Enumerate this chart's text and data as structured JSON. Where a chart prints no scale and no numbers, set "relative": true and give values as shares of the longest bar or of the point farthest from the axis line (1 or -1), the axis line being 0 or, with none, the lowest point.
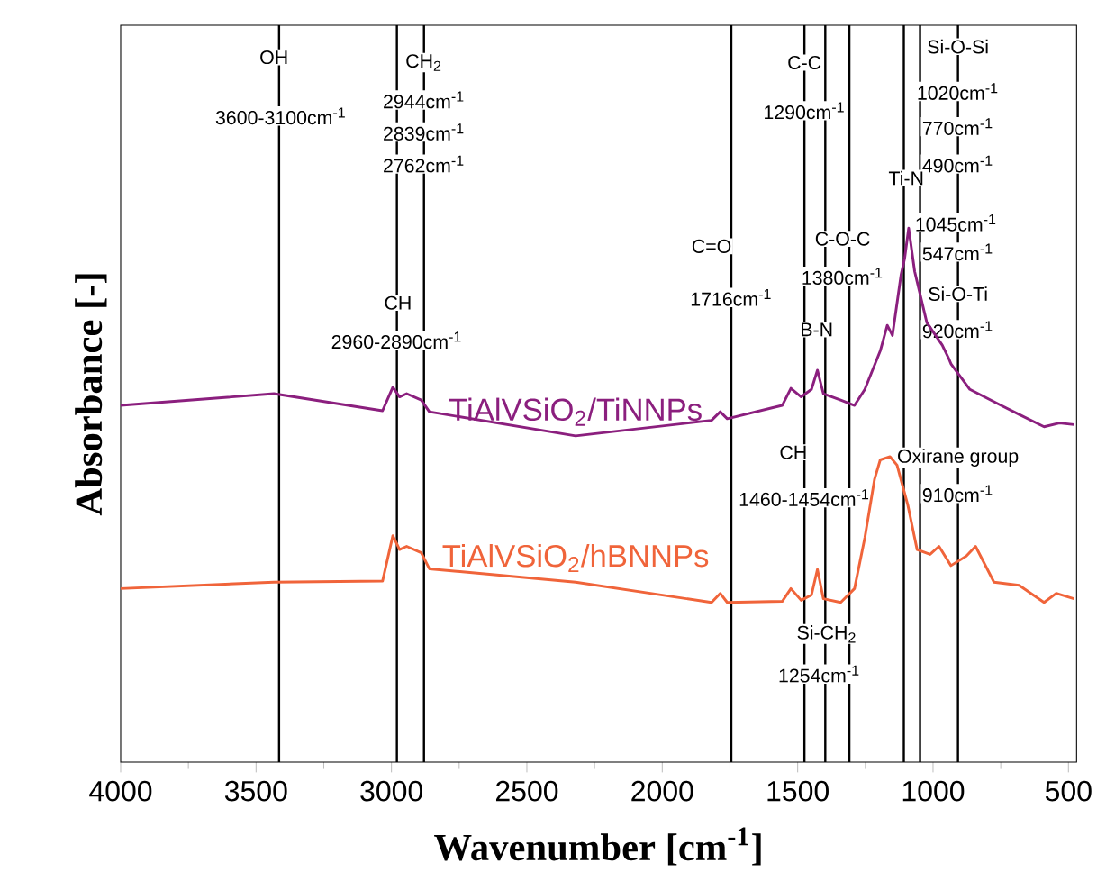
{
  "chart_data": {
    "type": "line",
    "relative": true,
    "xlabel": "Wavenumber [cm$^{-1}$]",
    "ylabel": "Absorbance [-]",
    "xlim": [
      4000,
      470
    ],
    "xticks": [
      4000,
      3500,
      3000,
      2500,
      2000,
      1500,
      1000,
      500
    ],
    "legend": false,
    "grid": false,
    "series": [
      {
        "name": "TiAlVSiO$_{2}$/TiNNPs",
        "color": "#8b1f7e",
        "x": [
          4000,
          3434,
          3033,
          2995,
          2970,
          2944,
          2890,
          2860,
          2320,
          1818,
          1786,
          1760,
          1557,
          1525,
          1487,
          1449,
          1427,
          1405,
          1341,
          1290,
          1252,
          1195,
          1169,
          1150,
          1118,
          1105,
          1090,
          1068,
          1023,
          966,
          943,
          934,
          864,
          749,
          682,
          590,
          533,
          480
        ],
        "values": [
          0.668,
          0.69,
          0.658,
          0.702,
          0.684,
          0.69,
          0.678,
          0.656,
          0.611,
          0.64,
          0.656,
          0.643,
          0.668,
          0.7,
          0.684,
          0.698,
          0.734,
          0.69,
          0.678,
          0.668,
          0.698,
          0.77,
          0.818,
          0.799,
          0.913,
          0.943,
          1.0,
          0.919,
          0.823,
          0.781,
          0.757,
          0.746,
          0.698,
          0.668,
          0.651,
          0.628,
          0.635,
          0.632
        ]
      },
      {
        "name": "TiAlVSiO$_{2}$/hBNNPs",
        "color": "#f0643a",
        "x": [
          4000,
          3434,
          3033,
          2995,
          2970,
          2944,
          2890,
          2860,
          2320,
          1818,
          1786,
          1760,
          1557,
          1525,
          1487,
          1449,
          1427,
          1405,
          1341,
          1290,
          1252,
          1216,
          1195,
          1159,
          1133,
          1093,
          1059,
          1011,
          978,
          934,
          877,
          843,
          775,
          682,
          590,
          545,
          480
        ],
        "values": [
          0.325,
          0.337,
          0.339,
          0.424,
          0.398,
          0.404,
          0.392,
          0.362,
          0.337,
          0.299,
          0.316,
          0.299,
          0.301,
          0.325,
          0.303,
          0.313,
          0.361,
          0.306,
          0.299,
          0.325,
          0.42,
          0.53,
          0.566,
          0.572,
          0.556,
          0.481,
          0.398,
          0.389,
          0.404,
          0.368,
          0.386,
          0.404,
          0.337,
          0.331,
          0.299,
          0.316,
          0.306
        ]
      }
    ],
    "ref_lines": [
      {
        "axis": "x",
        "value": 3415,
        "color": "#000000"
      },
      {
        "axis": "x",
        "value": 2980,
        "color": "#000000"
      },
      {
        "axis": "x",
        "value": 2880,
        "color": "#000000"
      },
      {
        "axis": "x",
        "value": 1745,
        "color": "#000000"
      },
      {
        "axis": "x",
        "value": 1475,
        "color": "#000000"
      },
      {
        "axis": "x",
        "value": 1398,
        "color": "#000000"
      },
      {
        "axis": "x",
        "value": 1309,
        "color": "#000000"
      },
      {
        "axis": "x",
        "value": 1108,
        "color": "#000000"
      },
      {
        "axis": "x",
        "value": 1048,
        "color": "#000000"
      },
      {
        "axis": "x",
        "value": 908,
        "color": "#000000"
      }
    ],
    "annotations": [
      {
        "text": "OH",
        "x": 3434,
        "y": 1.32
      },
      {
        "text": "3600-3100cm$^{-1}$",
        "x": 3408,
        "y": 1.21
      },
      {
        "text": "CH$_{2}$",
        "x": 2880,
        "y": 1.31
      },
      {
        "text": "2944cm$^{-1}$",
        "x": 2880,
        "y": 1.24
      },
      {
        "text": "2839cm$^{-1}$",
        "x": 2880,
        "y": 1.18
      },
      {
        "text": "2762cm$^{-1}$",
        "x": 2880,
        "y": 1.12
      },
      {
        "text": "CH",
        "x": 2976,
        "y": 0.86
      },
      {
        "text": "2960-2890cm$^{-1}$",
        "x": 2980,
        "y": 0.79
      },
      {
        "text": "C=O",
        "x": 1818,
        "y": 0.966
      },
      {
        "text": "1716cm$^{-1}$",
        "x": 1745,
        "y": 0.87
      },
      {
        "text": "C-C",
        "x": 1475,
        "y": 1.31
      },
      {
        "text": "1290cm$^{-1}$",
        "x": 1475,
        "y": 1.22
      },
      {
        "text": "C-O-C",
        "x": 1334,
        "y": 0.98
      },
      {
        "text": "1380cm$^{-1}$",
        "x": 1334,
        "y": 0.91
      },
      {
        "text": "B-N",
        "x": 1430,
        "y": 0.81
      },
      {
        "text": "Si-O-Si",
        "x": 908,
        "y": 1.34
      },
      {
        "text": "1020cm$^{-1}$",
        "x": 908,
        "y": 1.256
      },
      {
        "text": "770cm$^{-1}$",
        "x": 908,
        "y": 1.19
      },
      {
        "text": "490cm$^{-1}$",
        "x": 908,
        "y": 1.12
      },
      {
        "text": "Ti-N",
        "x": 1099,
        "y": 1.094
      },
      {
        "text": "1045cm$^{-1}$",
        "x": 915,
        "y": 1.01
      },
      {
        "text": "547cm$^{-1}$",
        "x": 908,
        "y": 0.955
      },
      {
        "text": "Si-O-Ti",
        "x": 908,
        "y": 0.877
      },
      {
        "text": "920cm$^{-1}$",
        "x": 908,
        "y": 0.81
      },
      {
        "text": "CH",
        "x": 1516,
        "y": 0.58
      },
      {
        "text": "1460-1454cm$^{-1}$",
        "x": 1475,
        "y": 0.495
      },
      {
        "text": "Oxirane group",
        "x": 908,
        "y": 0.57
      },
      {
        "text": "910cm$^{-1}$",
        "x": 908,
        "y": 0.503
      },
      {
        "text": "Si-CH$_{2}$",
        "x": 1392,
        "y": 0.24
      },
      {
        "text": "1254cm$^{-1}$",
        "x": 1420,
        "y": 0.165
      }
    ]
  }
}
